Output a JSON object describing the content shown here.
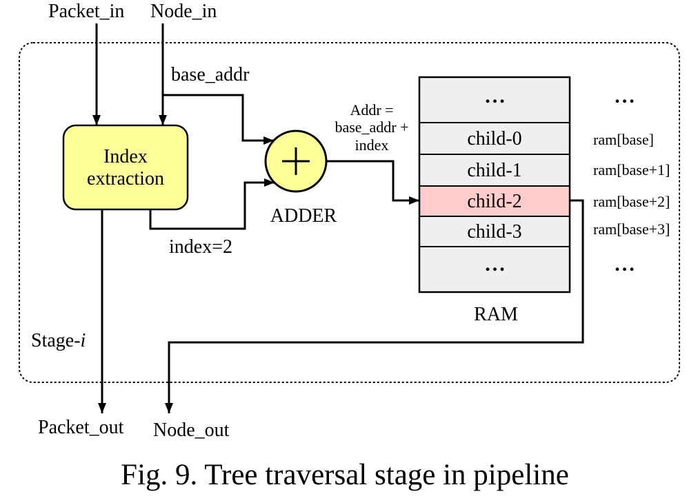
{
  "inputs": {
    "packet_in": "Packet_in",
    "node_in": "Node_in"
  },
  "outputs": {
    "packet_out": "Packet_out",
    "node_out": "Node_out"
  },
  "signals": {
    "base_addr": "base_addr",
    "index": "index=2"
  },
  "index_extraction": {
    "line1": "Index",
    "line2": "extraction",
    "fill": "#ffff99"
  },
  "adder": {
    "icon": "plus-symbol",
    "label": "ADDER",
    "fill": "#ffff99",
    "formula": [
      "Addr =",
      "base_addr +",
      "index"
    ]
  },
  "ram": {
    "label": "RAM",
    "cell_color": "#efefef",
    "highlight_color": "#ffcccc",
    "highlighted_row": "child-2",
    "rows": [
      "...",
      "child-0",
      "child-1",
      "child-2",
      "child-3",
      "..."
    ],
    "addresses": [
      "...",
      "ram[base]",
      "ram[base+1]",
      "ram[base+2]",
      "ram[base+3]",
      "..."
    ]
  },
  "stage": {
    "label": "Stage-",
    "index": "i"
  },
  "caption": "Fig. 9. Tree traversal stage in pipeline"
}
